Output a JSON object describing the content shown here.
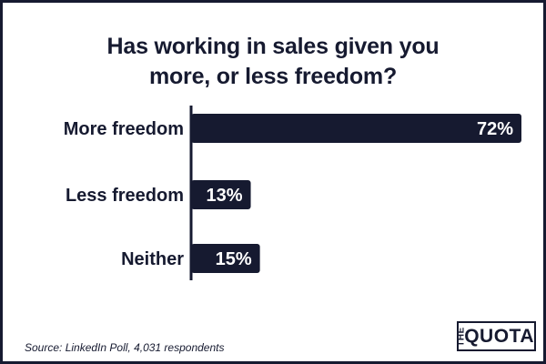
{
  "chart_data": {
    "type": "bar",
    "orientation": "horizontal",
    "title_lines": [
      "Has working in sales given you",
      "more, or less freedom?"
    ],
    "categories": [
      "More freedom",
      "Less freedom",
      "Neither"
    ],
    "values": [
      72,
      13,
      15
    ],
    "value_labels": [
      "72%",
      "13%",
      "15%"
    ],
    "xlim": [
      0,
      72
    ],
    "grid": false,
    "legend": "none"
  },
  "footer": {
    "source": "Source: LinkedIn Poll, 4,031 respondents",
    "logo_small": "THE",
    "logo_main": "QUOTA"
  },
  "colors": {
    "bar": "#161a30",
    "text": "#161a30",
    "background": "#ffffff",
    "bar_label": "#ffffff"
  }
}
